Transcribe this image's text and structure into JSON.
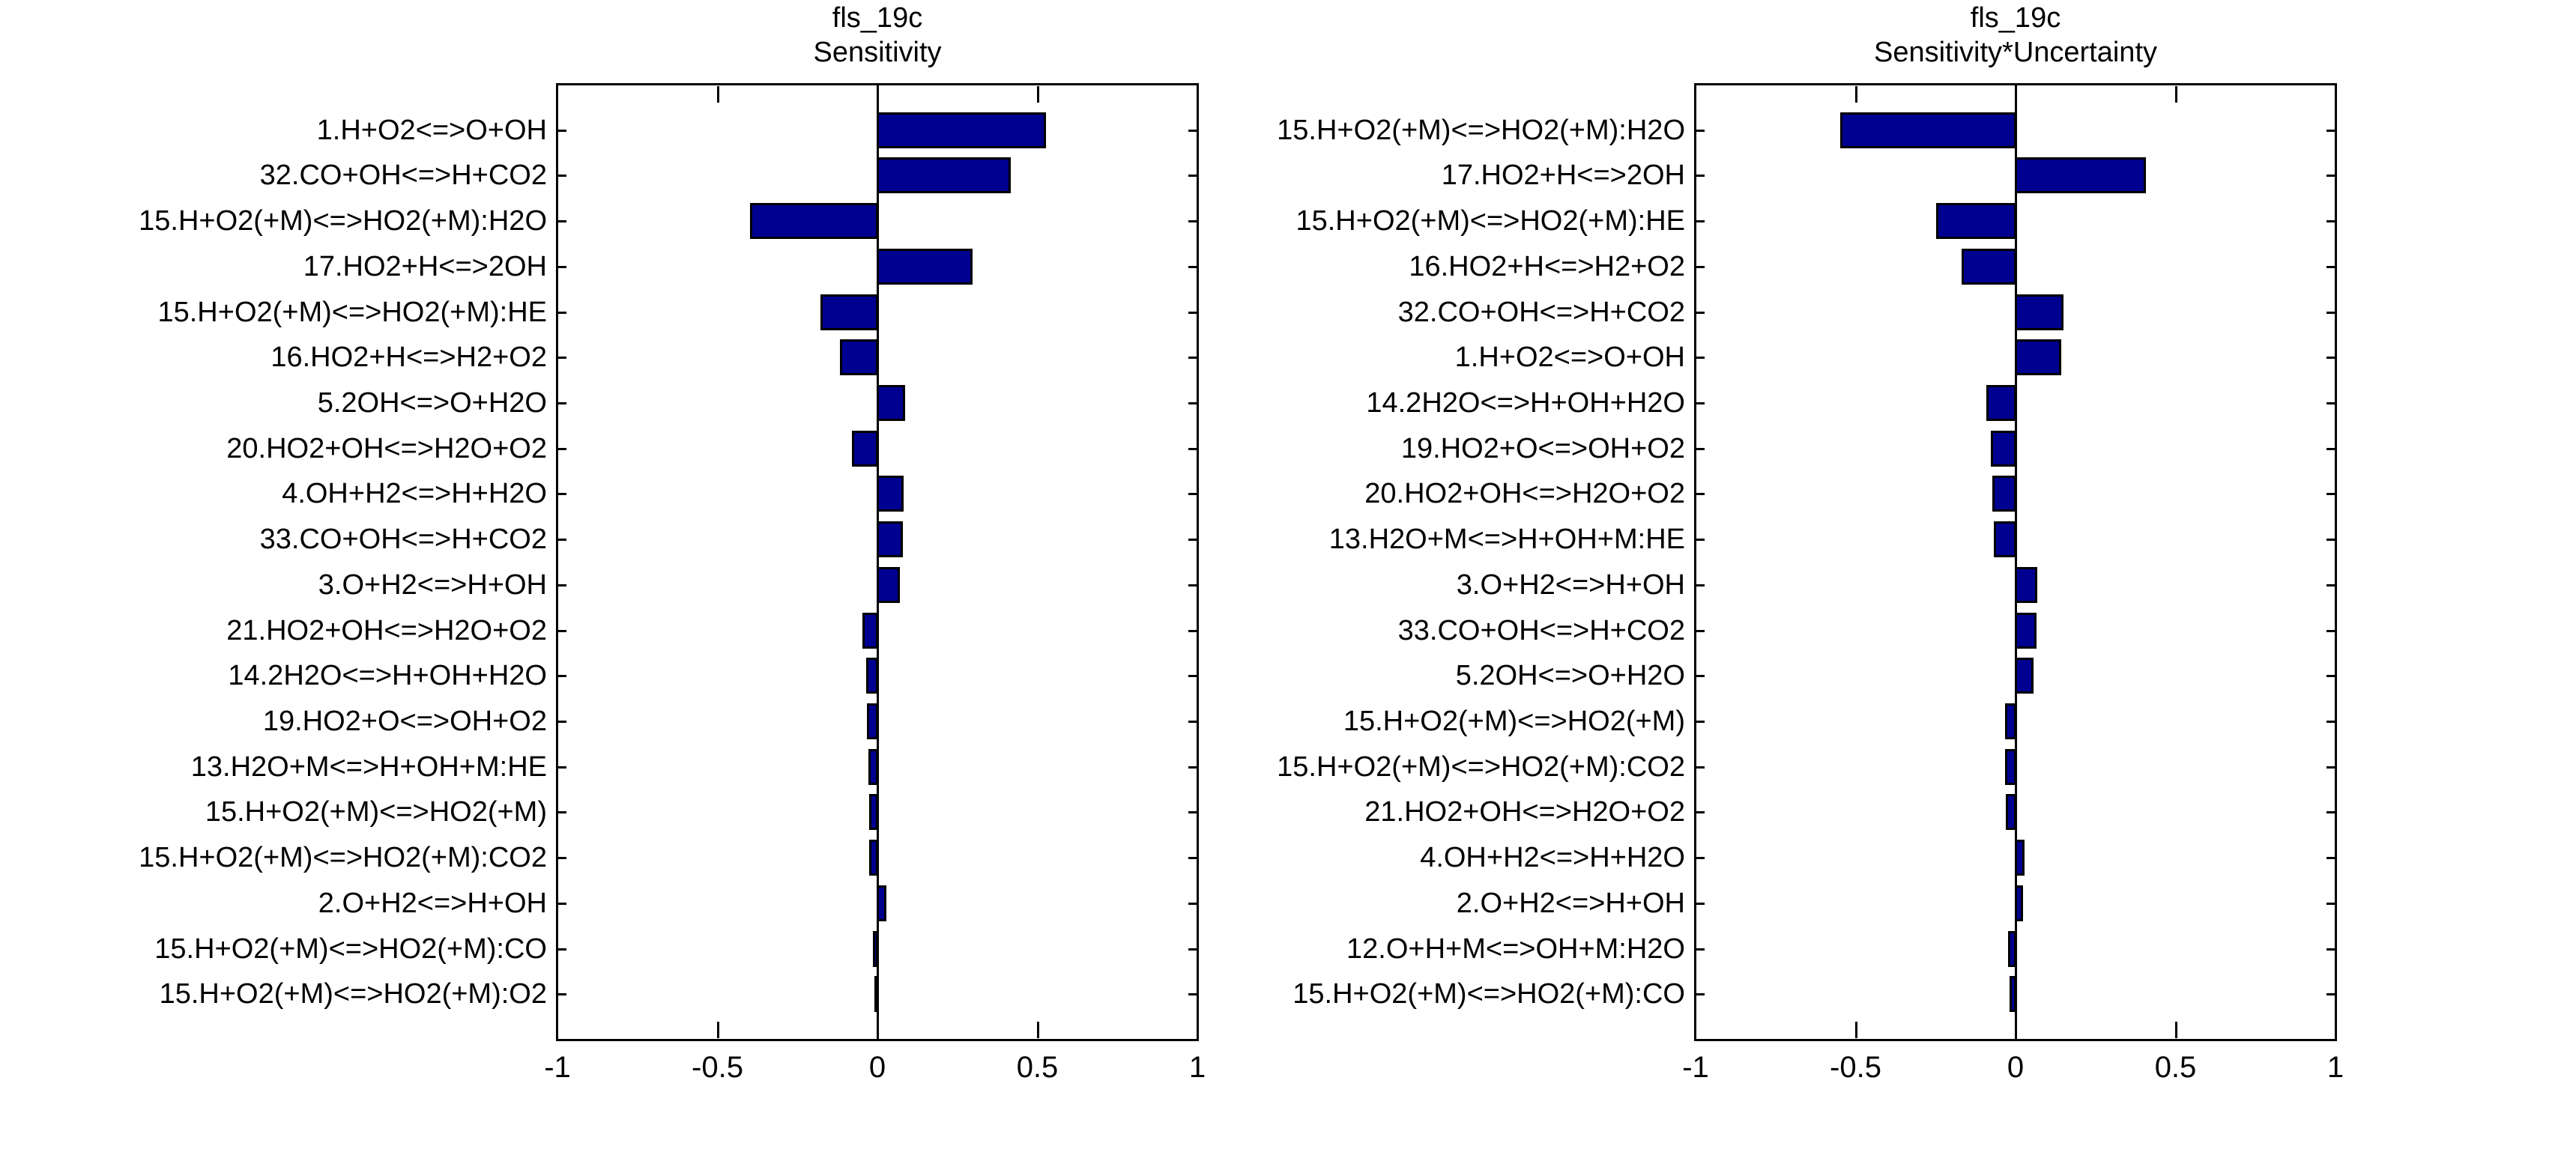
{
  "colors": {
    "bar_fill": "#000090",
    "bar_edge": "#000000",
    "axis": "#000000",
    "text": "#000000",
    "background": "#ffffff"
  },
  "chart_data": [
    {
      "type": "bar",
      "orientation": "horizontal",
      "title": "fls_19c",
      "subtitle": "Sensitivity",
      "xlim": [
        -1,
        1
      ],
      "xticks": [
        -1,
        -0.5,
        0,
        0.5,
        1
      ],
      "xtick_labels": [
        "-1",
        "-0.5",
        "0",
        "0.5",
        "1"
      ],
      "grid": false,
      "categories": [
        "1.H+O2<=>O+OH",
        "32.CO+OH<=>H+CO2",
        "15.H+O2(+M)<=>HO2(+M):H2O",
        "17.HO2+H<=>2OH",
        "15.H+O2(+M)<=>HO2(+M):HE",
        "16.HO2+H<=>H2+O2",
        "5.2OH<=>O+H2O",
        "20.HO2+OH<=>H2O+O2",
        "4.OH+H2<=>H+H2O",
        "33.CO+OH<=>H+CO2",
        "3.O+H2<=>H+OH",
        "21.HO2+OH<=>H2O+O2",
        "14.2H2O<=>H+OH+H2O",
        "19.HO2+O<=>OH+O2",
        "13.H2O+M<=>H+OH+M:HE",
        "15.H+O2(+M)<=>HO2(+M)",
        "15.H+O2(+M)<=>HO2(+M):CO2",
        "2.O+H2<=>H+OH",
        "15.H+O2(+M)<=>HO2(+M):CO",
        "15.H+O2(+M)<=>HO2(+M):O2"
      ],
      "values": [
        0.53,
        0.42,
        -0.4,
        0.3,
        -0.18,
        -0.12,
        0.088,
        -0.082,
        0.084,
        0.083,
        0.072,
        -0.05,
        -0.038,
        -0.034,
        -0.03,
        -0.028,
        -0.027,
        0.03,
        -0.016,
        -0.005
      ]
    },
    {
      "type": "bar",
      "orientation": "horizontal",
      "title": "fls_19c",
      "subtitle": "Sensitivity*Uncertainty",
      "xlim": [
        -1,
        1
      ],
      "xticks": [
        -1,
        -0.5,
        0,
        0.5,
        1
      ],
      "xtick_labels": [
        "-1",
        "-0.5",
        "0",
        "0.5",
        "1"
      ],
      "grid": false,
      "categories": [
        "15.H+O2(+M)<=>HO2(+M):H2O",
        "17.HO2+H<=>2OH",
        "15.H+O2(+M)<=>HO2(+M):HE",
        "16.HO2+H<=>H2+O2",
        "32.CO+OH<=>H+CO2",
        "1.H+O2<=>O+OH",
        "14.2H2O<=>H+OH+H2O",
        "19.HO2+O<=>OH+O2",
        "20.HO2+OH<=>H2O+O2",
        "13.H2O+M<=>H+OH+M:HE",
        "3.O+H2<=>H+OH",
        "33.CO+OH<=>H+CO2",
        "5.2OH<=>O+H2O",
        "15.H+O2(+M)<=>HO2(+M)",
        "15.H+O2(+M)<=>HO2(+M):CO2",
        "21.HO2+OH<=>H2O+O2",
        "4.OH+H2<=>H+H2O",
        "2.O+H2<=>H+OH",
        "12.O+H+M<=>OH+M:H2O",
        "15.H+O2(+M)<=>HO2(+M):CO"
      ],
      "values": [
        -0.55,
        0.41,
        -0.25,
        -0.17,
        0.152,
        0.145,
        -0.093,
        -0.08,
        -0.075,
        -0.071,
        0.07,
        0.067,
        0.058,
        -0.036,
        -0.035,
        -0.032,
        0.03,
        0.026,
        -0.025,
        -0.02
      ]
    }
  ]
}
